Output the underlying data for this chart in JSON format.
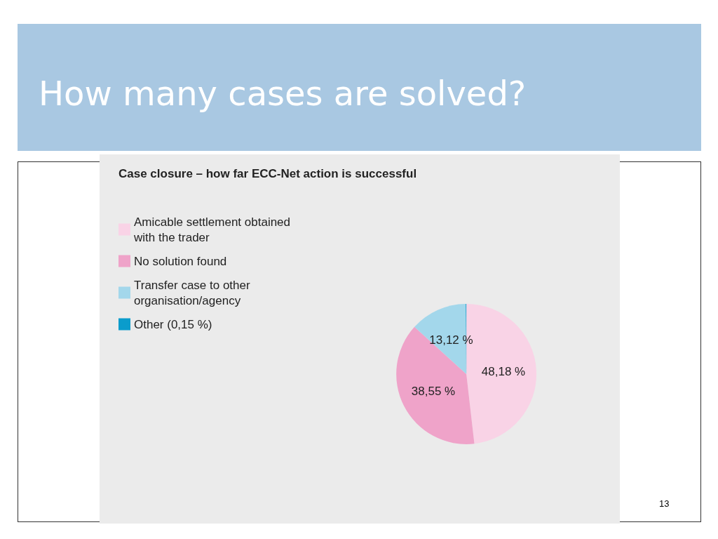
{
  "chart_data": {
    "type": "pie",
    "title": "How many cases are solved?",
    "subtitle": "Case closure – how far ECC-Net action is successful",
    "categories": [
      "Amicable settlement obtained with the trader",
      "No solution found",
      "Transfer case to other organisation/agency",
      "Other (0,15 %)"
    ],
    "values": [
      48.18,
      38.55,
      13.12,
      0.15
    ],
    "colors": [
      "#f9d3e6",
      "#efa3c9",
      "#a3d7eb",
      "#0a9ccc"
    ],
    "value_labels": [
      "48,18 %",
      "38,55 %",
      "13,12 %",
      null
    ],
    "legend": "top left",
    "annotations": [
      "13"
    ]
  }
}
